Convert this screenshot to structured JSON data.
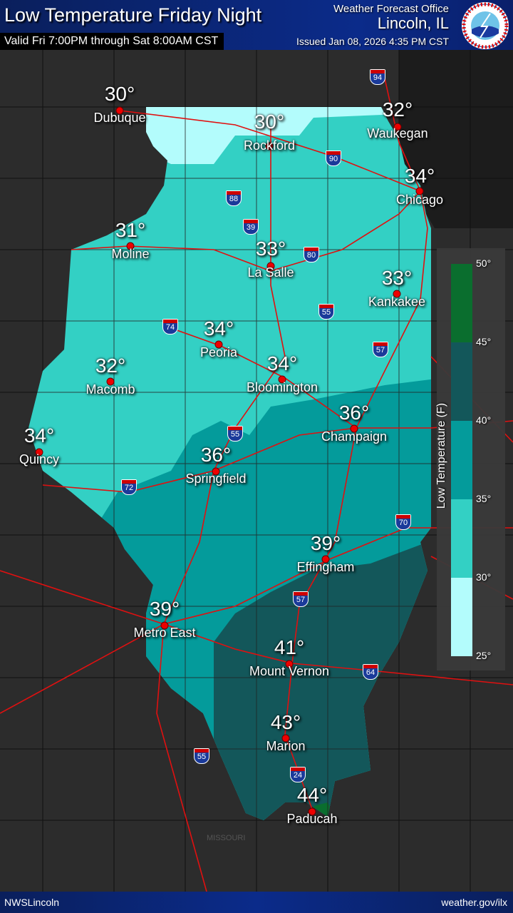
{
  "header": {
    "title": "Low Temperature Friday Night",
    "valid": "Valid Fri 7:00PM through Sat 8:00AM CST",
    "wfo_label": "Weather Forecast Office",
    "office": "Lincoln, IL",
    "issued": "Issued Jan 08, 2026 4:35 PM CST",
    "logo_text": "NATIONAL WEATHER SERVICE"
  },
  "cities": [
    {
      "name": "Dubuque",
      "temp": "30°"
    },
    {
      "name": "Rockford",
      "temp": "30°"
    },
    {
      "name": "Waukegan",
      "temp": "32°"
    },
    {
      "name": "Chicago",
      "temp": "34°"
    },
    {
      "name": "Moline",
      "temp": "31°"
    },
    {
      "name": "La Salle",
      "temp": "33°"
    },
    {
      "name": "Kankakee",
      "temp": "33°"
    },
    {
      "name": "Peoria",
      "temp": "34°"
    },
    {
      "name": "Macomb",
      "temp": "32°"
    },
    {
      "name": "Bloomington",
      "temp": "34°"
    },
    {
      "name": "Champaign",
      "temp": "36°"
    },
    {
      "name": "Quincy",
      "temp": "34°"
    },
    {
      "name": "Springfield",
      "temp": "36°"
    },
    {
      "name": "Effingham",
      "temp": "39°"
    },
    {
      "name": "Metro East",
      "temp": "39°"
    },
    {
      "name": "Mount Vernon",
      "temp": "41°"
    },
    {
      "name": "Marion",
      "temp": "43°"
    },
    {
      "name": "Paducah",
      "temp": "44°"
    }
  ],
  "interstates": [
    "94",
    "90",
    "88",
    "39",
    "80",
    "55",
    "74",
    "57",
    "55",
    "72",
    "70",
    "57",
    "64",
    "55",
    "24"
  ],
  "legend": {
    "title": "Low Temperature (F)",
    "ticks": [
      "50°",
      "45°",
      "40°",
      "35°",
      "30°",
      "25°"
    ],
    "colors": [
      "#0a6e2e",
      "#13575a",
      "#049b9b",
      "#33d0c4",
      "#b3fcfc"
    ]
  },
  "map_label": "MISSOURI",
  "footer": {
    "left": "NWSLincoln",
    "right": "weather.gov/ilx"
  }
}
